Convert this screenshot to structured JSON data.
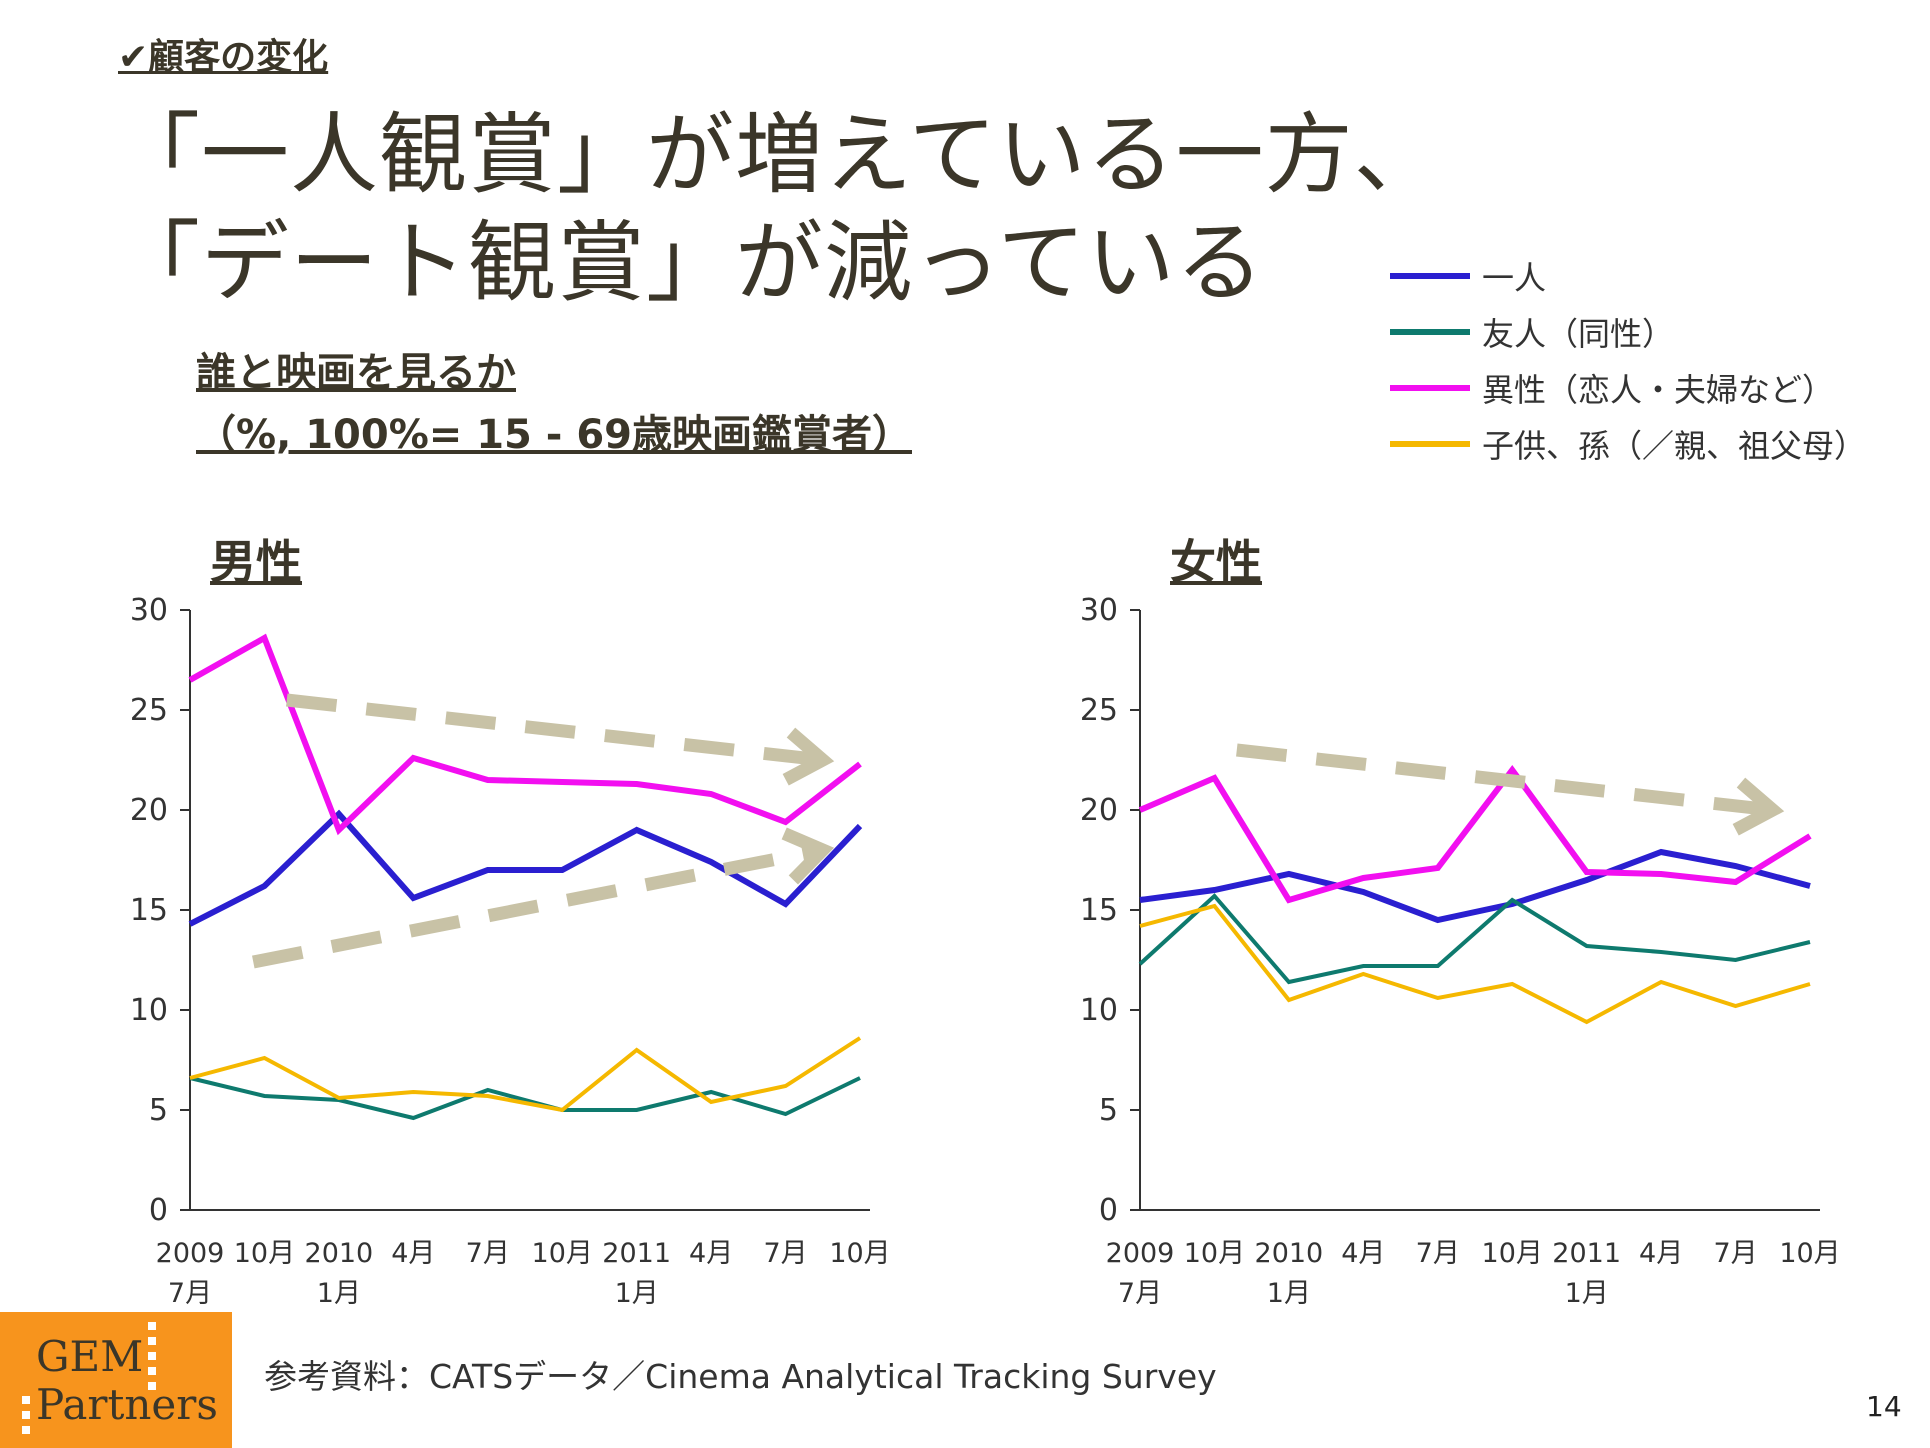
{
  "slide": {
    "kicker": "✔顧客の変化",
    "headline_line1": "「一人観賞」が増えている一方、",
    "headline_line2": "「デート観賞」が減っている",
    "subtitle_line1": "誰と映画を見るか",
    "subtitle_line2": "（%, 100%= 15 - 69歳映画鑑賞者）",
    "source": "参考資料：CATSデータ／Cinema Analytical Tracking Survey",
    "page_number": "14",
    "logo_line1": "GEM",
    "logo_line2": "Partners"
  },
  "legend": [
    {
      "label": "一人",
      "color": "#2a1fd0"
    },
    {
      "label": "友人（同性）",
      "color": "#0e7a6e"
    },
    {
      "label": "異性（恋人・夫婦など）",
      "color": "#f20ff0"
    },
    {
      "label": "子供、孫（／親、祖父母）",
      "color": "#f5b800"
    }
  ],
  "colors": {
    "trend_arrow": "#c8c2a6",
    "axis": "#333333"
  },
  "chart_data": [
    {
      "type": "line",
      "title": "男性",
      "categories": [
        "2009 7月",
        "10月",
        "2010 1月",
        "4月",
        "7月",
        "10月",
        "2011 1月",
        "4月",
        "7月",
        "10月"
      ],
      "tick_top": [
        "2009",
        "10月",
        "2010",
        "4月",
        "7月",
        "10月",
        "2011",
        "4月",
        "7月",
        "10月"
      ],
      "tick_bottom": [
        "7月",
        "",
        "1月",
        "",
        "",
        "",
        "1月",
        "",
        "",
        ""
      ],
      "ylim": [
        0,
        30
      ],
      "yticks": [
        0,
        5,
        10,
        15,
        20,
        25,
        30
      ],
      "series": [
        {
          "name": "一人",
          "values": [
            14.3,
            16.2,
            19.8,
            15.6,
            17.0,
            17.0,
            19.0,
            17.4,
            15.3,
            19.2
          ]
        },
        {
          "name": "友人（同性）",
          "values": [
            6.6,
            5.7,
            5.5,
            4.6,
            6.0,
            5.0,
            5.0,
            5.9,
            4.8,
            6.6
          ]
        },
        {
          "name": "異性（恋人・夫婦など）",
          "values": [
            26.5,
            28.6,
            19.0,
            22.6,
            21.5,
            21.4,
            21.3,
            20.8,
            19.4,
            22.3
          ]
        },
        {
          "name": "子供、孫（／親、祖父母）",
          "values": [
            6.6,
            7.6,
            5.6,
            5.9,
            5.7,
            5.0,
            8.0,
            5.4,
            6.2,
            8.6
          ]
        }
      ],
      "trends": [
        {
          "from": [
            1.3,
            25.5
          ],
          "to": [
            8.5,
            22.5
          ]
        },
        {
          "from": [
            0.85,
            12.4
          ],
          "to": [
            8.5,
            18.0
          ]
        }
      ]
    },
    {
      "type": "line",
      "title": "女性",
      "categories": [
        "2009 7月",
        "10月",
        "2010 1月",
        "4月",
        "7月",
        "10月",
        "2011 1月",
        "4月",
        "7月",
        "10月"
      ],
      "tick_top": [
        "2009",
        "10月",
        "2010",
        "4月",
        "7月",
        "10月",
        "2011",
        "4月",
        "7月",
        "10月"
      ],
      "tick_bottom": [
        "7月",
        "",
        "1月",
        "",
        "",
        "",
        "1月",
        "",
        "",
        ""
      ],
      "ylim": [
        0,
        30
      ],
      "yticks": [
        0,
        5,
        10,
        15,
        20,
        25,
        30
      ],
      "series": [
        {
          "name": "一人",
          "values": [
            15.5,
            16.0,
            16.8,
            15.9,
            14.5,
            15.3,
            16.5,
            17.9,
            17.2,
            16.2
          ]
        },
        {
          "name": "友人（同性）",
          "values": [
            12.3,
            15.7,
            11.4,
            12.2,
            12.2,
            15.5,
            13.2,
            12.9,
            12.5,
            13.4
          ]
        },
        {
          "name": "異性（恋人・夫婦など）",
          "values": [
            20.0,
            21.6,
            15.5,
            16.6,
            17.1,
            22.0,
            16.9,
            16.8,
            16.4,
            18.7
          ]
        },
        {
          "name": "子供、孫（／親、祖父母）",
          "values": [
            14.2,
            15.2,
            10.5,
            11.8,
            10.6,
            11.3,
            9.4,
            11.4,
            10.2,
            11.3
          ]
        }
      ],
      "trends": [
        {
          "from": [
            1.3,
            23.0
          ],
          "to": [
            8.5,
            20.0
          ]
        }
      ]
    }
  ]
}
